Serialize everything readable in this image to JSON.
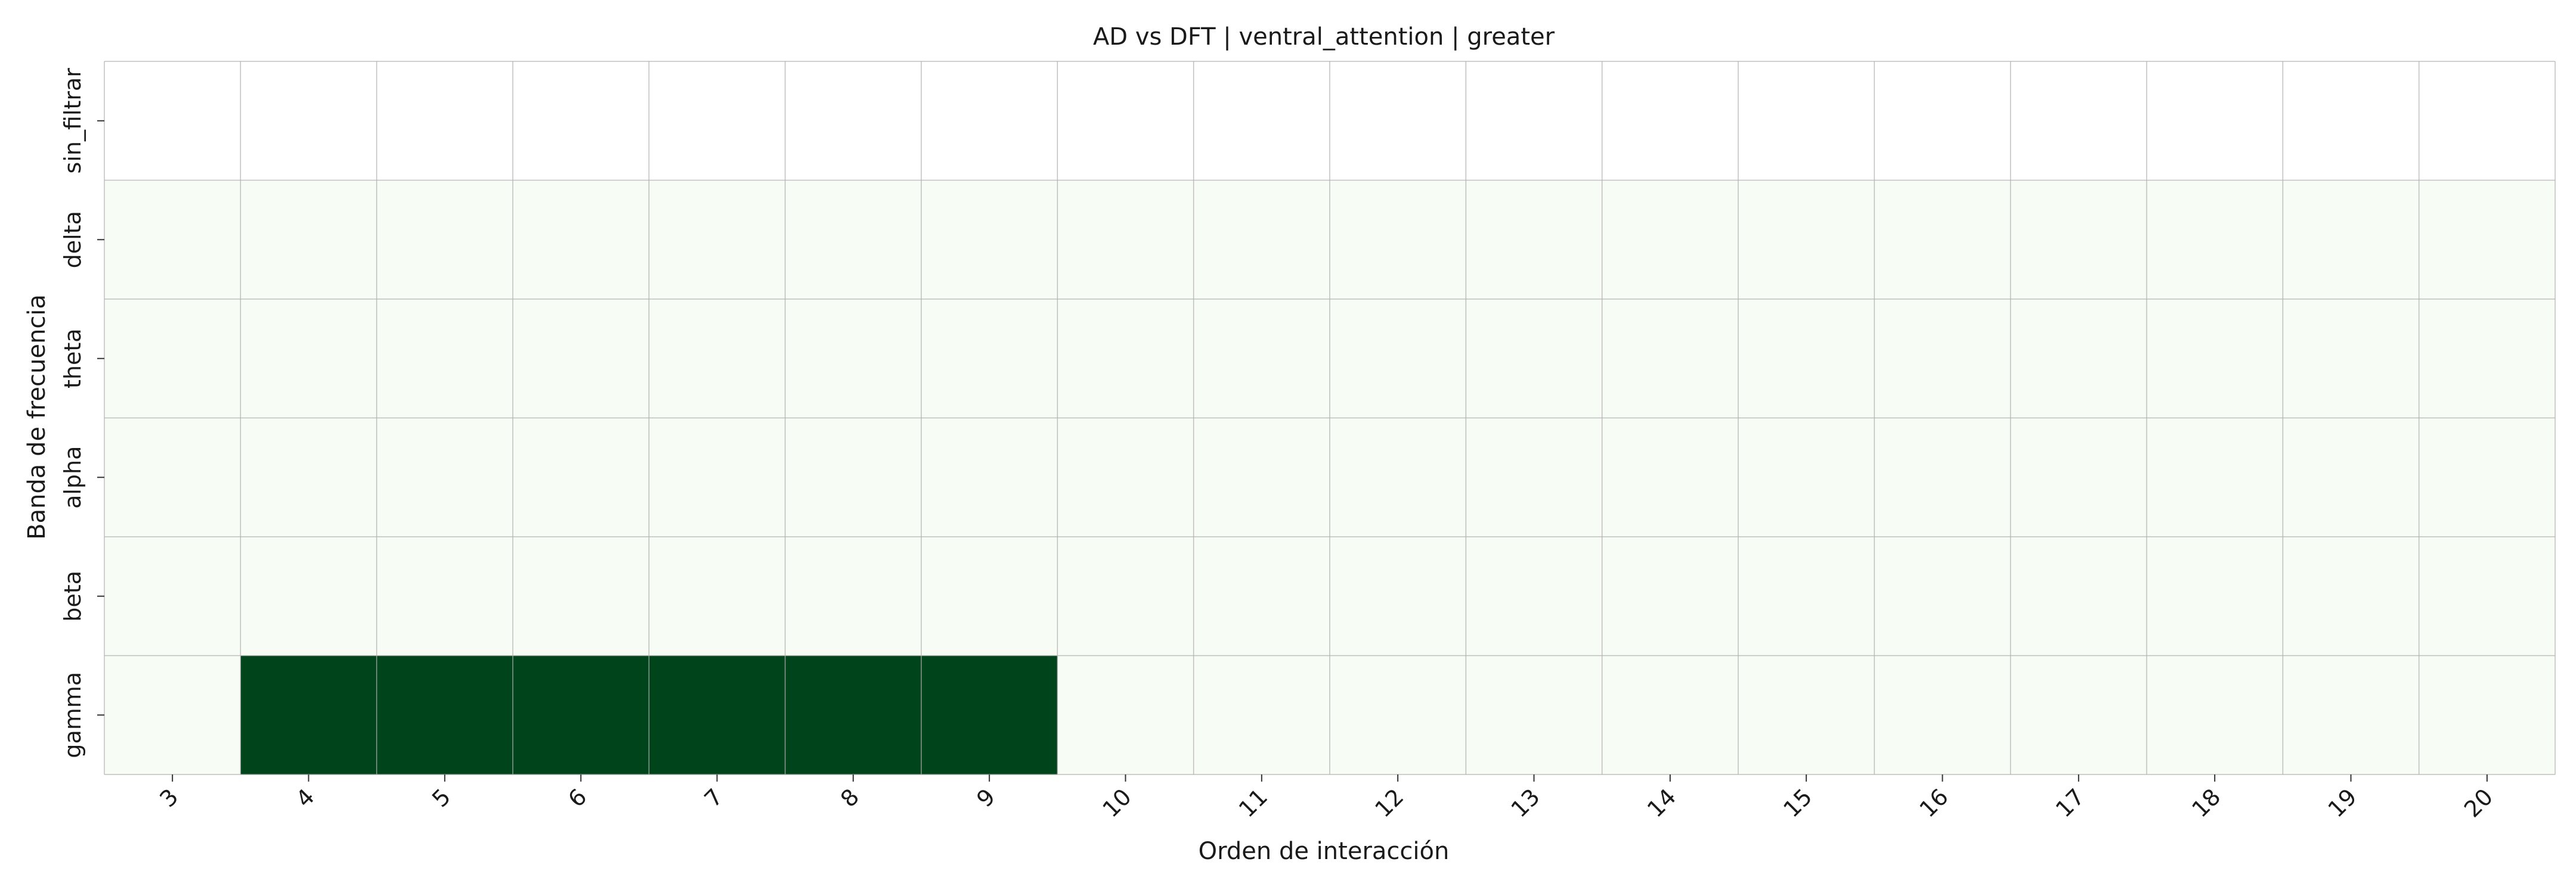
{
  "chart_data": {
    "type": "heatmap",
    "title": "AD vs DFT | ventral_attention | greater",
    "xlabel": "Orden de interacción",
    "ylabel": "Banda de frecuencia",
    "x_categories": [
      "3",
      "4",
      "5",
      "6",
      "7",
      "8",
      "9",
      "10",
      "11",
      "12",
      "13",
      "14",
      "15",
      "16",
      "17",
      "18",
      "19",
      "20"
    ],
    "y_categories": [
      "sin_filtrar",
      "delta",
      "theta",
      "alpha",
      "beta",
      "gamma"
    ],
    "values": [
      [
        null,
        null,
        null,
        null,
        null,
        null,
        null,
        null,
        null,
        null,
        null,
        null,
        null,
        null,
        null,
        null,
        null,
        null
      ],
      [
        0,
        0,
        0,
        0,
        0,
        0,
        0,
        0,
        0,
        0,
        0,
        0,
        0,
        0,
        0,
        0,
        0,
        0
      ],
      [
        0,
        0,
        0,
        0,
        0,
        0,
        0,
        0,
        0,
        0,
        0,
        0,
        0,
        0,
        0,
        0,
        0,
        0
      ],
      [
        0,
        0,
        0,
        0,
        0,
        0,
        0,
        0,
        0,
        0,
        0,
        0,
        0,
        0,
        0,
        0,
        0,
        0
      ],
      [
        0,
        0,
        0,
        0,
        0,
        0,
        0,
        0,
        0,
        0,
        0,
        0,
        0,
        0,
        0,
        0,
        0,
        0
      ],
      [
        0,
        1,
        1,
        1,
        1,
        1,
        1,
        0,
        0,
        0,
        0,
        0,
        0,
        0,
        0,
        0,
        0,
        0
      ]
    ],
    "value_range": [
      0,
      1
    ],
    "colormap": {
      "low": "#f7fcf5",
      "high": "#00441b",
      "missing": "#ffffff"
    },
    "grid": true,
    "grid_color": "#b0b0b0",
    "colorbar": false,
    "x_tick_rotation_deg": 45
  }
}
